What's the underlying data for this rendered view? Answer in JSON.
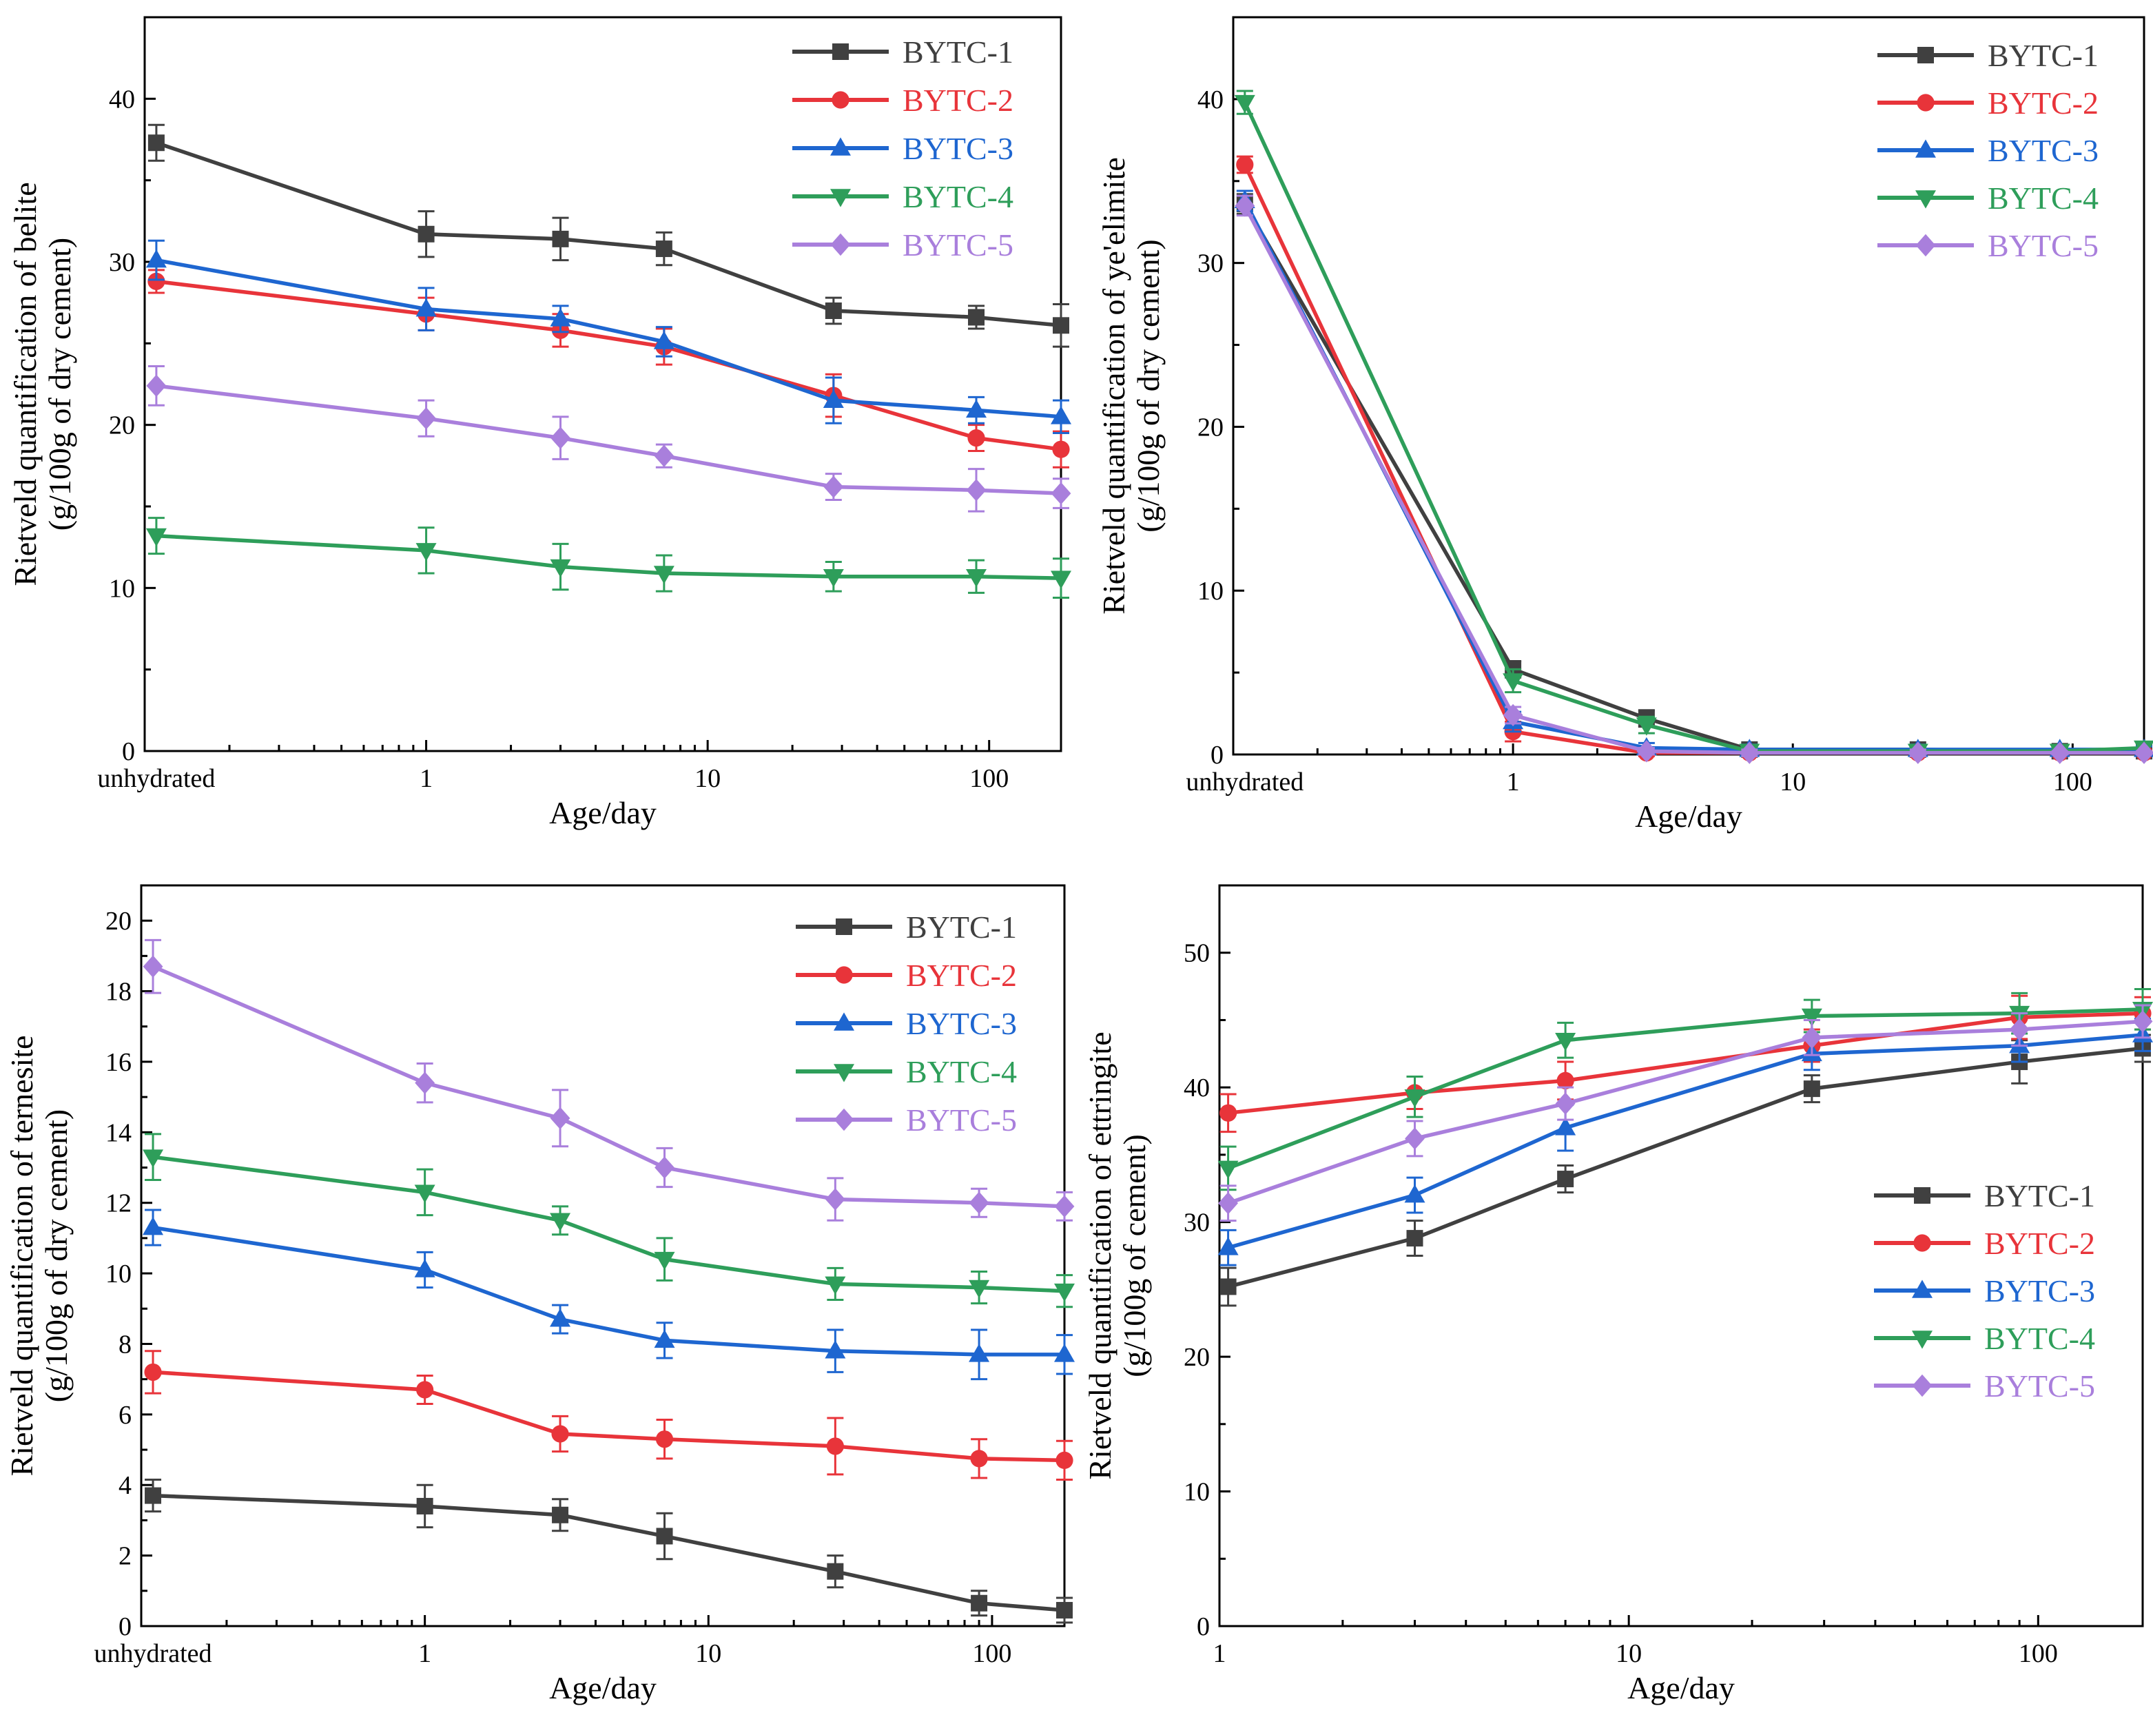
{
  "colors": {
    "BYTC-1": "#404040",
    "BYTC-2": "#e8343a",
    "BYTC-3": "#1e66d0",
    "BYTC-4": "#2e9e5a",
    "BYTC-5": "#a97fdc"
  },
  "chart_data": [
    {
      "type": "line",
      "id": "belite",
      "ylabel_line1": "Rietveld quantification of belite",
      "ylabel_line2": "(g/100g of dry cement)",
      "xlabel": "Age/day",
      "xscale": "log",
      "xlim": [
        0.1,
        180
      ],
      "ylim": [
        0,
        45
      ],
      "yticks": [
        0,
        10,
        20,
        30,
        40
      ],
      "x_tick_labels": [
        {
          "x": 0.11,
          "label": "unhydrated"
        },
        {
          "x": 1,
          "label": "1"
        },
        {
          "x": 10,
          "label": "10"
        },
        {
          "x": 100,
          "label": "100"
        }
      ],
      "x": [
        0.11,
        1,
        3,
        7,
        28,
        90,
        180
      ],
      "legend_position": "top-right",
      "series": [
        {
          "name": "BYTC-1",
          "marker": "square",
          "values": [
            37.3,
            31.7,
            31.4,
            30.8,
            27.0,
            26.6,
            26.1
          ],
          "errors": [
            1.1,
            1.4,
            1.3,
            1.0,
            0.8,
            0.7,
            1.3
          ]
        },
        {
          "name": "BYTC-2",
          "marker": "circle",
          "values": [
            28.8,
            26.8,
            25.8,
            24.8,
            21.8,
            19.2,
            18.5
          ],
          "errors": [
            0.7,
            1.0,
            1.0,
            1.1,
            1.3,
            0.8,
            1.1
          ]
        },
        {
          "name": "BYTC-3",
          "marker": "triangle-up",
          "values": [
            30.1,
            27.1,
            26.5,
            25.1,
            21.5,
            20.9,
            20.5
          ],
          "errors": [
            1.2,
            1.3,
            0.8,
            0.9,
            1.4,
            0.8,
            1.0
          ]
        },
        {
          "name": "BYTC-4",
          "marker": "triangle-down",
          "values": [
            13.2,
            12.3,
            11.3,
            10.9,
            10.7,
            10.7,
            10.6
          ],
          "errors": [
            1.1,
            1.4,
            1.4,
            1.1,
            0.9,
            1.0,
            1.2
          ]
        },
        {
          "name": "BYTC-5",
          "marker": "diamond",
          "values": [
            22.4,
            20.4,
            19.2,
            18.1,
            16.2,
            16.0,
            15.8
          ],
          "errors": [
            1.2,
            1.1,
            1.3,
            0.7,
            0.8,
            1.3,
            0.9
          ]
        }
      ]
    },
    {
      "type": "line",
      "id": "yeelimite",
      "ylabel_line1": "Rietveld quantification of ye'elimite",
      "ylabel_line2": "(g/100g of dry cement)",
      "xlabel": "Age/day",
      "xscale": "log",
      "xlim": [
        0.1,
        180
      ],
      "ylim": [
        0,
        45
      ],
      "yticks": [
        0,
        10,
        20,
        30,
        40
      ],
      "x_tick_labels": [
        {
          "x": 0.11,
          "label": "unhydrated"
        },
        {
          "x": 1,
          "label": "1"
        },
        {
          "x": 10,
          "label": "10"
        },
        {
          "x": 100,
          "label": "100"
        }
      ],
      "x": [
        0.11,
        1,
        3,
        7,
        28,
        90,
        180
      ],
      "legend_position": "top-right",
      "series": [
        {
          "name": "BYTC-1",
          "marker": "square",
          "values": [
            33.6,
            5.2,
            2.2,
            0.3,
            0.3,
            0.2,
            0.2
          ],
          "errors": [
            0.6,
            0.5,
            0.5,
            0.3,
            0.3,
            0.2,
            0.2
          ]
        },
        {
          "name": "BYTC-2",
          "marker": "circle",
          "values": [
            36.0,
            1.4,
            0.1,
            0.1,
            0.1,
            0.1,
            0.1
          ],
          "errors": [
            0.5,
            0.6,
            0.2,
            0.2,
            0.2,
            0.1,
            0.1
          ]
        },
        {
          "name": "BYTC-3",
          "marker": "triangle-up",
          "values": [
            33.8,
            2.0,
            0.4,
            0.3,
            0.3,
            0.3,
            0.3
          ],
          "errors": [
            0.6,
            0.6,
            0.3,
            0.3,
            0.3,
            0.2,
            0.2
          ]
        },
        {
          "name": "BYTC-4",
          "marker": "triangle-down",
          "values": [
            39.8,
            4.5,
            1.8,
            0.2,
            0.2,
            0.2,
            0.4
          ],
          "errors": [
            0.7,
            0.7,
            0.5,
            0.3,
            0.2,
            0.2,
            0.3
          ]
        },
        {
          "name": "BYTC-5",
          "marker": "diamond",
          "values": [
            33.5,
            2.4,
            0.2,
            0.1,
            0.1,
            0.1,
            0.1
          ],
          "errors": [
            0.6,
            0.5,
            0.2,
            0.2,
            0.2,
            0.1,
            0.1
          ]
        }
      ]
    },
    {
      "type": "line",
      "id": "ternesite",
      "ylabel_line1": "Rietveld quantification of ternesite",
      "ylabel_line2": "(g/100g of dry cement)",
      "xlabel": "Age/day",
      "xscale": "log",
      "xlim": [
        0.1,
        180
      ],
      "ylim": [
        0,
        21
      ],
      "yticks": [
        0,
        2,
        4,
        6,
        8,
        10,
        12,
        14,
        16,
        18,
        20
      ],
      "x_tick_labels": [
        {
          "x": 0.11,
          "label": "unhydrated"
        },
        {
          "x": 1,
          "label": "1"
        },
        {
          "x": 10,
          "label": "10"
        },
        {
          "x": 100,
          "label": "100"
        }
      ],
      "x": [
        0.11,
        1,
        3,
        7,
        28,
        90,
        180
      ],
      "legend_position": "top-right",
      "series": [
        {
          "name": "BYTC-1",
          "marker": "square",
          "values": [
            3.7,
            3.4,
            3.15,
            2.55,
            1.55,
            0.65,
            0.45
          ],
          "errors": [
            0.45,
            0.6,
            0.45,
            0.65,
            0.45,
            0.35,
            0.35
          ]
        },
        {
          "name": "BYTC-2",
          "marker": "circle",
          "values": [
            7.2,
            6.7,
            5.45,
            5.3,
            5.1,
            4.75,
            4.7
          ],
          "errors": [
            0.6,
            0.4,
            0.5,
            0.55,
            0.8,
            0.55,
            0.55
          ]
        },
        {
          "name": "BYTC-3",
          "marker": "triangle-up",
          "values": [
            11.3,
            10.1,
            8.7,
            8.1,
            7.8,
            7.7,
            7.7
          ],
          "errors": [
            0.5,
            0.5,
            0.4,
            0.5,
            0.6,
            0.7,
            0.55
          ]
        },
        {
          "name": "BYTC-4",
          "marker": "triangle-down",
          "values": [
            13.3,
            12.3,
            11.5,
            10.4,
            9.7,
            9.6,
            9.5
          ],
          "errors": [
            0.65,
            0.65,
            0.4,
            0.6,
            0.45,
            0.45,
            0.45
          ]
        },
        {
          "name": "BYTC-5",
          "marker": "diamond",
          "values": [
            18.7,
            15.4,
            14.4,
            13.0,
            12.1,
            12.0,
            11.9
          ],
          "errors": [
            0.75,
            0.55,
            0.8,
            0.55,
            0.6,
            0.4,
            0.4
          ]
        }
      ]
    },
    {
      "type": "line",
      "id": "ettringite",
      "ylabel_line1": "Rietveld quantification of ettringite",
      "ylabel_line2": "(g/100g of cement)",
      "xlabel": "Age/day",
      "xscale": "log",
      "xlim": [
        1,
        180
      ],
      "ylim": [
        0,
        55
      ],
      "yticks": [
        0,
        10,
        20,
        30,
        40,
        50
      ],
      "x_tick_labels": [
        {
          "x": 1,
          "label": "1"
        },
        {
          "x": 10,
          "label": "10"
        },
        {
          "x": 100,
          "label": "100"
        }
      ],
      "x": [
        1.05,
        3,
        7,
        28,
        90,
        180
      ],
      "legend_position": "center-right",
      "series": [
        {
          "name": "BYTC-1",
          "marker": "square",
          "values": [
            25.2,
            28.8,
            33.2,
            39.9,
            41.9,
            42.9
          ],
          "errors": [
            1.4,
            1.3,
            1.0,
            1.0,
            1.6,
            1.0
          ]
        },
        {
          "name": "BYTC-2",
          "marker": "circle",
          "values": [
            38.1,
            39.6,
            40.5,
            43.1,
            45.2,
            45.5
          ],
          "errors": [
            1.4,
            1.2,
            1.4,
            1.2,
            1.6,
            1.2
          ]
        },
        {
          "name": "BYTC-3",
          "marker": "triangle-up",
          "values": [
            28.1,
            32.0,
            37.0,
            42.5,
            43.1,
            43.9
          ],
          "errors": [
            1.3,
            1.3,
            1.7,
            1.2,
            1.2,
            1.2
          ]
        },
        {
          "name": "BYTC-4",
          "marker": "triangle-down",
          "values": [
            34.0,
            39.3,
            43.5,
            45.3,
            45.5,
            45.8
          ],
          "errors": [
            1.6,
            1.5,
            1.3,
            1.2,
            1.5,
            1.5
          ]
        },
        {
          "name": "BYTC-5",
          "marker": "diamond",
          "values": [
            31.4,
            36.2,
            38.8,
            43.7,
            44.3,
            44.9
          ],
          "errors": [
            1.3,
            1.3,
            1.2,
            1.3,
            1.2,
            1.2
          ]
        }
      ]
    }
  ]
}
